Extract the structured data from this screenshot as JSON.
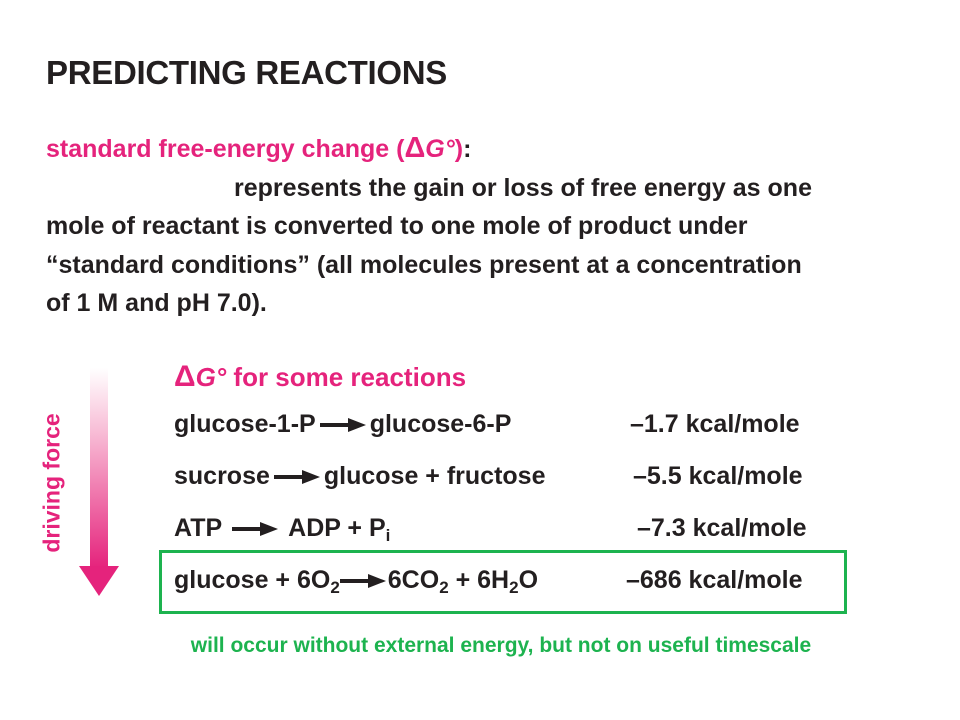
{
  "title": "PREDICTING REACTIONS",
  "definition": {
    "term_prefix": "standard free-energy change (",
    "delta_symbol": "Δ",
    "g_symbol": "G°",
    "term_suffix": ")",
    "colon": ":",
    "line1": "represents the gain or loss of free energy as one",
    "line2": "mole of reactant is converted to one mole of product under",
    "line3": "“standard conditions” (all molecules present at a concentration",
    "line4": "of 1 M and pH 7.0)."
  },
  "driving_force_label": "driving force",
  "table": {
    "title_delta": "Δ",
    "title_g": "G°",
    "title_rest": " for some reactions",
    "rows": [
      {
        "reactants": "glucose-1-P",
        "products": "glucose-6-P",
        "value": "–1.7 kcal/mole"
      },
      {
        "reactants": "sucrose",
        "products": "glucose + fructose",
        "value": "–5.5 kcal/mole"
      },
      {
        "reactants": "ATP",
        "products_main": "ADP + P",
        "products_sub": "i",
        "value": "–7.3 kcal/mole"
      },
      {
        "reactants_main": "glucose + 6O",
        "reactants_sub": "2",
        "products_a": "6CO",
        "products_sub1": "2",
        "products_b": " + 6H",
        "products_sub2": "2",
        "products_c": "O",
        "value": "–686 kcal/mole"
      }
    ]
  },
  "footnote": "will occur without external energy, but not on useful timescale",
  "colors": {
    "accent_pink": "#e5237c",
    "highlight_green": "#1db34f",
    "text_dark": "#231f20"
  }
}
